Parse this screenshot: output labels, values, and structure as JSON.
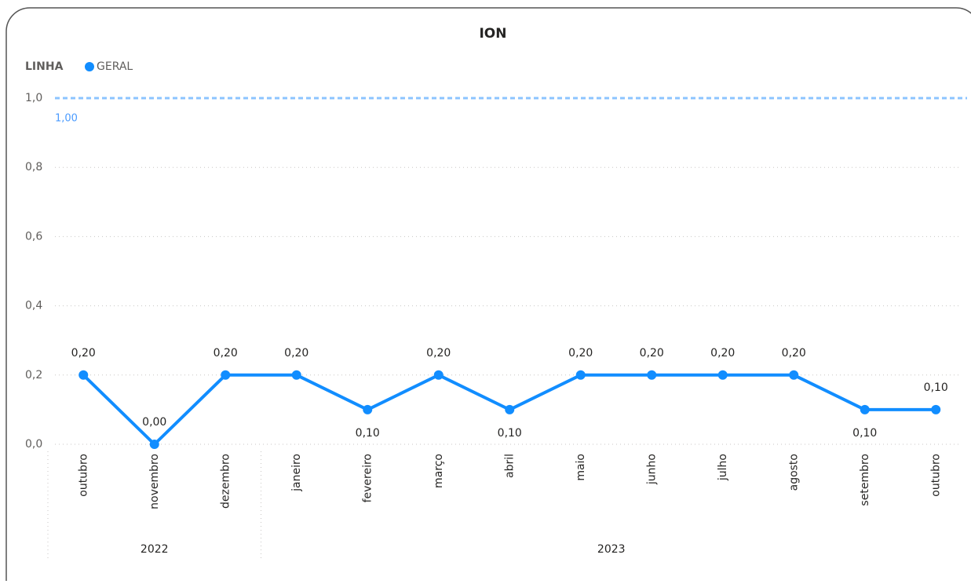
{
  "chart_data": {
    "type": "line",
    "title": "ION",
    "legend_title": "LINHA",
    "categories": [
      "outubro",
      "novembro",
      "dezembro",
      "janeiro",
      "fevereiro",
      "março",
      "abril",
      "maio",
      "junho",
      "julho",
      "agosto",
      "setembro",
      "outubro"
    ],
    "years": [
      "2022",
      "2022",
      "2022",
      "2023",
      "2023",
      "2023",
      "2023",
      "2023",
      "2023",
      "2023",
      "2023",
      "2023",
      "2023"
    ],
    "series": [
      {
        "name": "GERAL",
        "color": "#118dff",
        "values": [
          0.2,
          0,
          0.2,
          0.2,
          0.1,
          0.2,
          0.1,
          0.2,
          0.2,
          0.2,
          0.2,
          0.1,
          0.1
        ],
        "value_labels": [
          "0,20",
          "0,00",
          "0,20",
          "0,20",
          "0,10",
          "0,20",
          "0,10",
          "0,20",
          "0,20",
          "0,20",
          "0,20",
          "0,10",
          "0,10"
        ]
      }
    ],
    "ylim": [
      0,
      1
    ],
    "yticks": [
      {
        "value": 0,
        "label": "0,0"
      },
      {
        "value": 0.2,
        "label": "0,2"
      },
      {
        "value": 0.4,
        "label": "0,4"
      },
      {
        "value": 0.6,
        "label": "0,6"
      },
      {
        "value": 0.8,
        "label": "0,8"
      },
      {
        "value": 1,
        "label": "1,0"
      }
    ],
    "reference_line": {
      "value": 1,
      "label": "1,00",
      "color": "#8cc4ff"
    },
    "grid": true,
    "legend_position": "top-left"
  }
}
